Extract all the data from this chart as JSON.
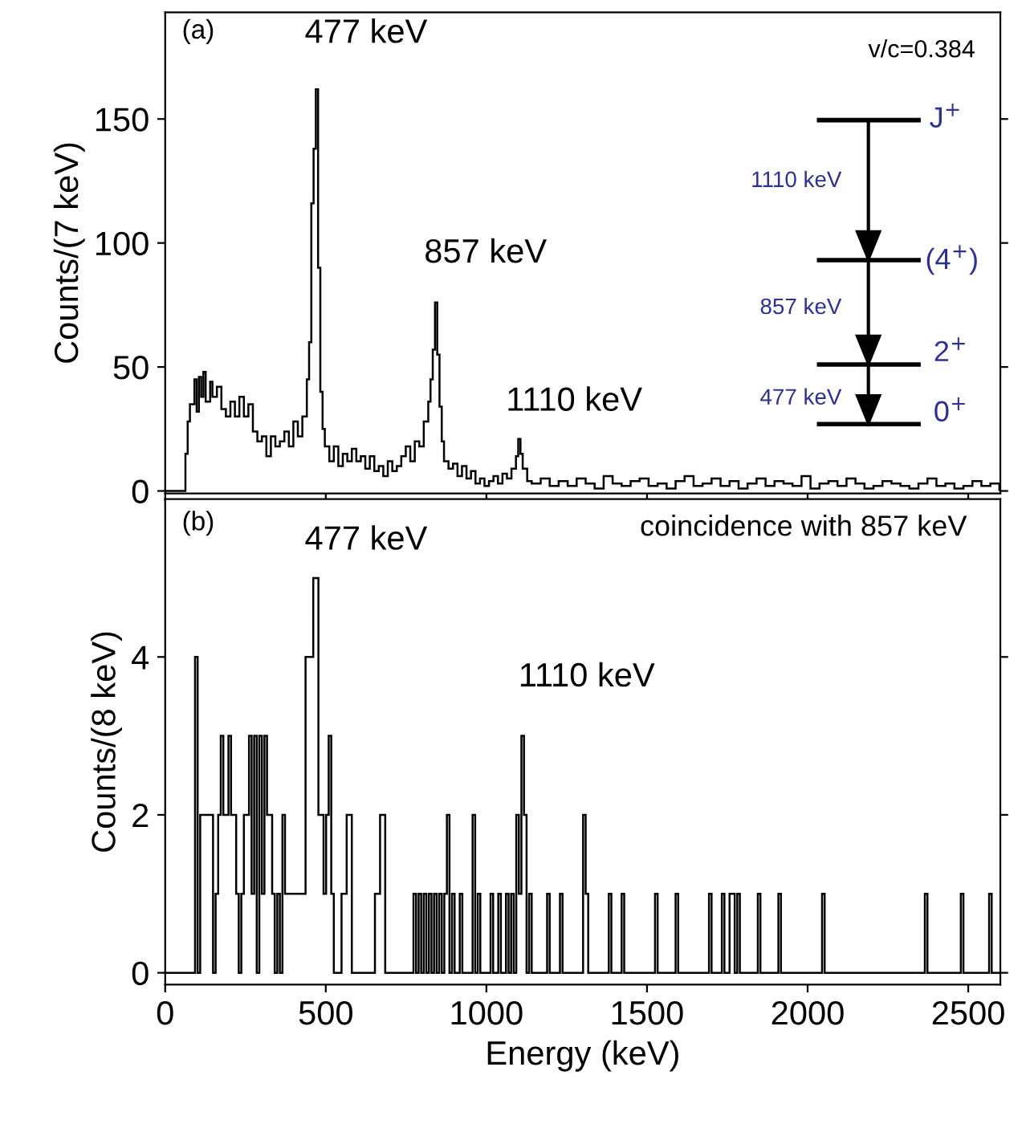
{
  "chart_data": [
    {
      "type": "histogram",
      "ylabel": "Counts/(7 keV)",
      "color": "#000000",
      "bins": [
        0,
        63,
        70,
        77,
        91,
        98,
        105,
        112,
        119,
        126,
        140,
        147,
        161,
        175,
        189,
        203,
        217,
        231,
        245,
        259,
        273,
        287,
        301,
        315,
        329,
        343,
        357,
        371,
        385,
        399,
        413,
        427,
        441,
        448,
        455,
        462,
        469,
        476,
        483,
        490,
        497,
        511,
        525,
        539,
        553,
        567,
        581,
        595,
        609,
        623,
        637,
        651,
        665,
        679,
        693,
        707,
        721,
        735,
        749,
        763,
        777,
        791,
        805,
        819,
        826,
        833,
        840,
        847,
        854,
        861,
        868,
        882,
        896,
        910,
        924,
        938,
        952,
        966,
        980,
        994,
        1008,
        1022,
        1036,
        1050,
        1064,
        1078,
        1092,
        1099,
        1106,
        1113,
        1127,
        1141,
        1169,
        1197,
        1225,
        1253,
        1281,
        1309,
        1337,
        1365,
        1393,
        1421,
        1449,
        1477,
        1505,
        1533,
        1561,
        1589,
        1617,
        1645,
        1673,
        1701,
        1729,
        1757,
        1785,
        1813,
        1841,
        1869,
        1897,
        1925,
        1953,
        1981,
        2009,
        2037,
        2065,
        2093,
        2121,
        2149,
        2177,
        2205,
        2233,
        2261,
        2289,
        2317,
        2345,
        2373,
        2401,
        2429,
        2457,
        2485,
        2513,
        2541,
        2569,
        2597
      ],
      "values": [
        0,
        15,
        28,
        35,
        45,
        32,
        46,
        38,
        48,
        36,
        44,
        38,
        42,
        33,
        30,
        36,
        30,
        38,
        30,
        35,
        24,
        20,
        22,
        14,
        22,
        18,
        20,
        24,
        18,
        28,
        22,
        30,
        45,
        60,
        116,
        138,
        162,
        90,
        40,
        25,
        18,
        12,
        18,
        10,
        15,
        12,
        17,
        12,
        14,
        9,
        14,
        8,
        10,
        6,
        12,
        8,
        10,
        14,
        18,
        12,
        20,
        18,
        28,
        36,
        45,
        57,
        76,
        55,
        34,
        20,
        12,
        9,
        11,
        6,
        10,
        5,
        8,
        3,
        5,
        2,
        4,
        6,
        3,
        7,
        5,
        9,
        14,
        21,
        15,
        9,
        4,
        3,
        5,
        2,
        4,
        2,
        5,
        3,
        1,
        6,
        3,
        2,
        4,
        5,
        2,
        3,
        1,
        4,
        6,
        2,
        3,
        5,
        2,
        4,
        1,
        3,
        5,
        2,
        4,
        3,
        2,
        6,
        1,
        3,
        4,
        2,
        5,
        3,
        1,
        2,
        4,
        3,
        2,
        1,
        3,
        5,
        2,
        3,
        1,
        2,
        4,
        2,
        3
      ],
      "xlim": [
        0,
        2600
      ],
      "ylim": [
        -1,
        193
      ],
      "yticks": [
        0,
        50,
        100,
        150
      ],
      "xticks": [
        0,
        500,
        1000,
        1500,
        2000,
        2500
      ],
      "tick_labels": "y",
      "annotations": [
        "477 keV",
        "857 keV",
        "1110 keV",
        "(a)",
        "v/c=0.384",
        "J$^{+}$",
        "1110 keV",
        "(4$^{+}$)",
        "857 keV",
        "2$^{+}$",
        "477 keV",
        "0$^{+}$"
      ]
    },
    {
      "type": "histogram",
      "ylabel": "Counts/(8 keV)",
      "xlabel": "Energy (keV)",
      "color": "#000000",
      "bins": [
        0,
        93,
        101,
        109,
        149,
        157,
        165,
        173,
        181,
        197,
        205,
        221,
        229,
        237,
        245,
        261,
        269,
        277,
        285,
        293,
        301,
        309,
        317,
        333,
        341,
        349,
        357,
        365,
        373,
        437,
        461,
        477,
        493,
        501,
        509,
        517,
        525,
        549,
        565,
        581,
        653,
        669,
        685,
        773,
        781,
        789,
        797,
        805,
        813,
        821,
        829,
        837,
        845,
        853,
        861,
        869,
        877,
        885,
        893,
        901,
        917,
        925,
        957,
        965,
        973,
        981,
        1013,
        1021,
        1037,
        1045,
        1061,
        1069,
        1077,
        1085,
        1093,
        1101,
        1109,
        1117,
        1125,
        1133,
        1141,
        1189,
        1197,
        1229,
        1237,
        1301,
        1309,
        1317,
        1381,
        1389,
        1421,
        1429,
        1525,
        1533,
        1589,
        1597,
        1693,
        1701,
        1733,
        1741,
        1757,
        1773,
        1781,
        1789,
        1845,
        1853,
        1909,
        1917,
        2045,
        2053,
        2365,
        2373,
        2477,
        2485,
        2565,
        2573,
        2600
      ],
      "values": [
        0,
        4,
        0,
        2,
        0,
        1,
        2,
        3,
        2,
        3,
        2,
        1,
        0,
        1,
        2,
        3,
        1,
        3,
        0,
        3,
        1,
        3,
        2,
        1,
        0,
        1,
        0,
        2,
        1,
        4,
        5,
        2,
        1,
        2,
        3,
        1,
        0,
        1,
        2,
        0,
        1,
        2,
        0,
        1,
        0,
        1,
        0,
        1,
        0,
        1,
        0,
        1,
        0,
        1,
        0,
        1,
        2,
        0,
        1,
        0,
        1,
        0,
        2,
        0,
        1,
        0,
        1,
        0,
        1,
        0,
        1,
        0,
        1,
        0,
        2,
        1,
        3,
        2,
        0,
        1,
        0,
        1,
        0,
        1,
        0,
        2,
        1,
        0,
        1,
        0,
        1,
        0,
        1,
        0,
        1,
        0,
        1,
        0,
        1,
        0,
        1,
        0,
        1,
        0,
        1,
        0,
        1,
        0,
        1,
        0,
        1,
        0,
        1,
        0,
        1,
        0
      ],
      "xlim": [
        0,
        2600
      ],
      "ylim": [
        -0.15,
        6
      ],
      "yticks": [
        0,
        2,
        4
      ],
      "xticks": [
        0,
        500,
        1000,
        1500,
        2000,
        2500
      ],
      "annotations": [
        "477 keV",
        "1110 keV",
        "(b)",
        "coincidence with 857 keV"
      ]
    }
  ]
}
